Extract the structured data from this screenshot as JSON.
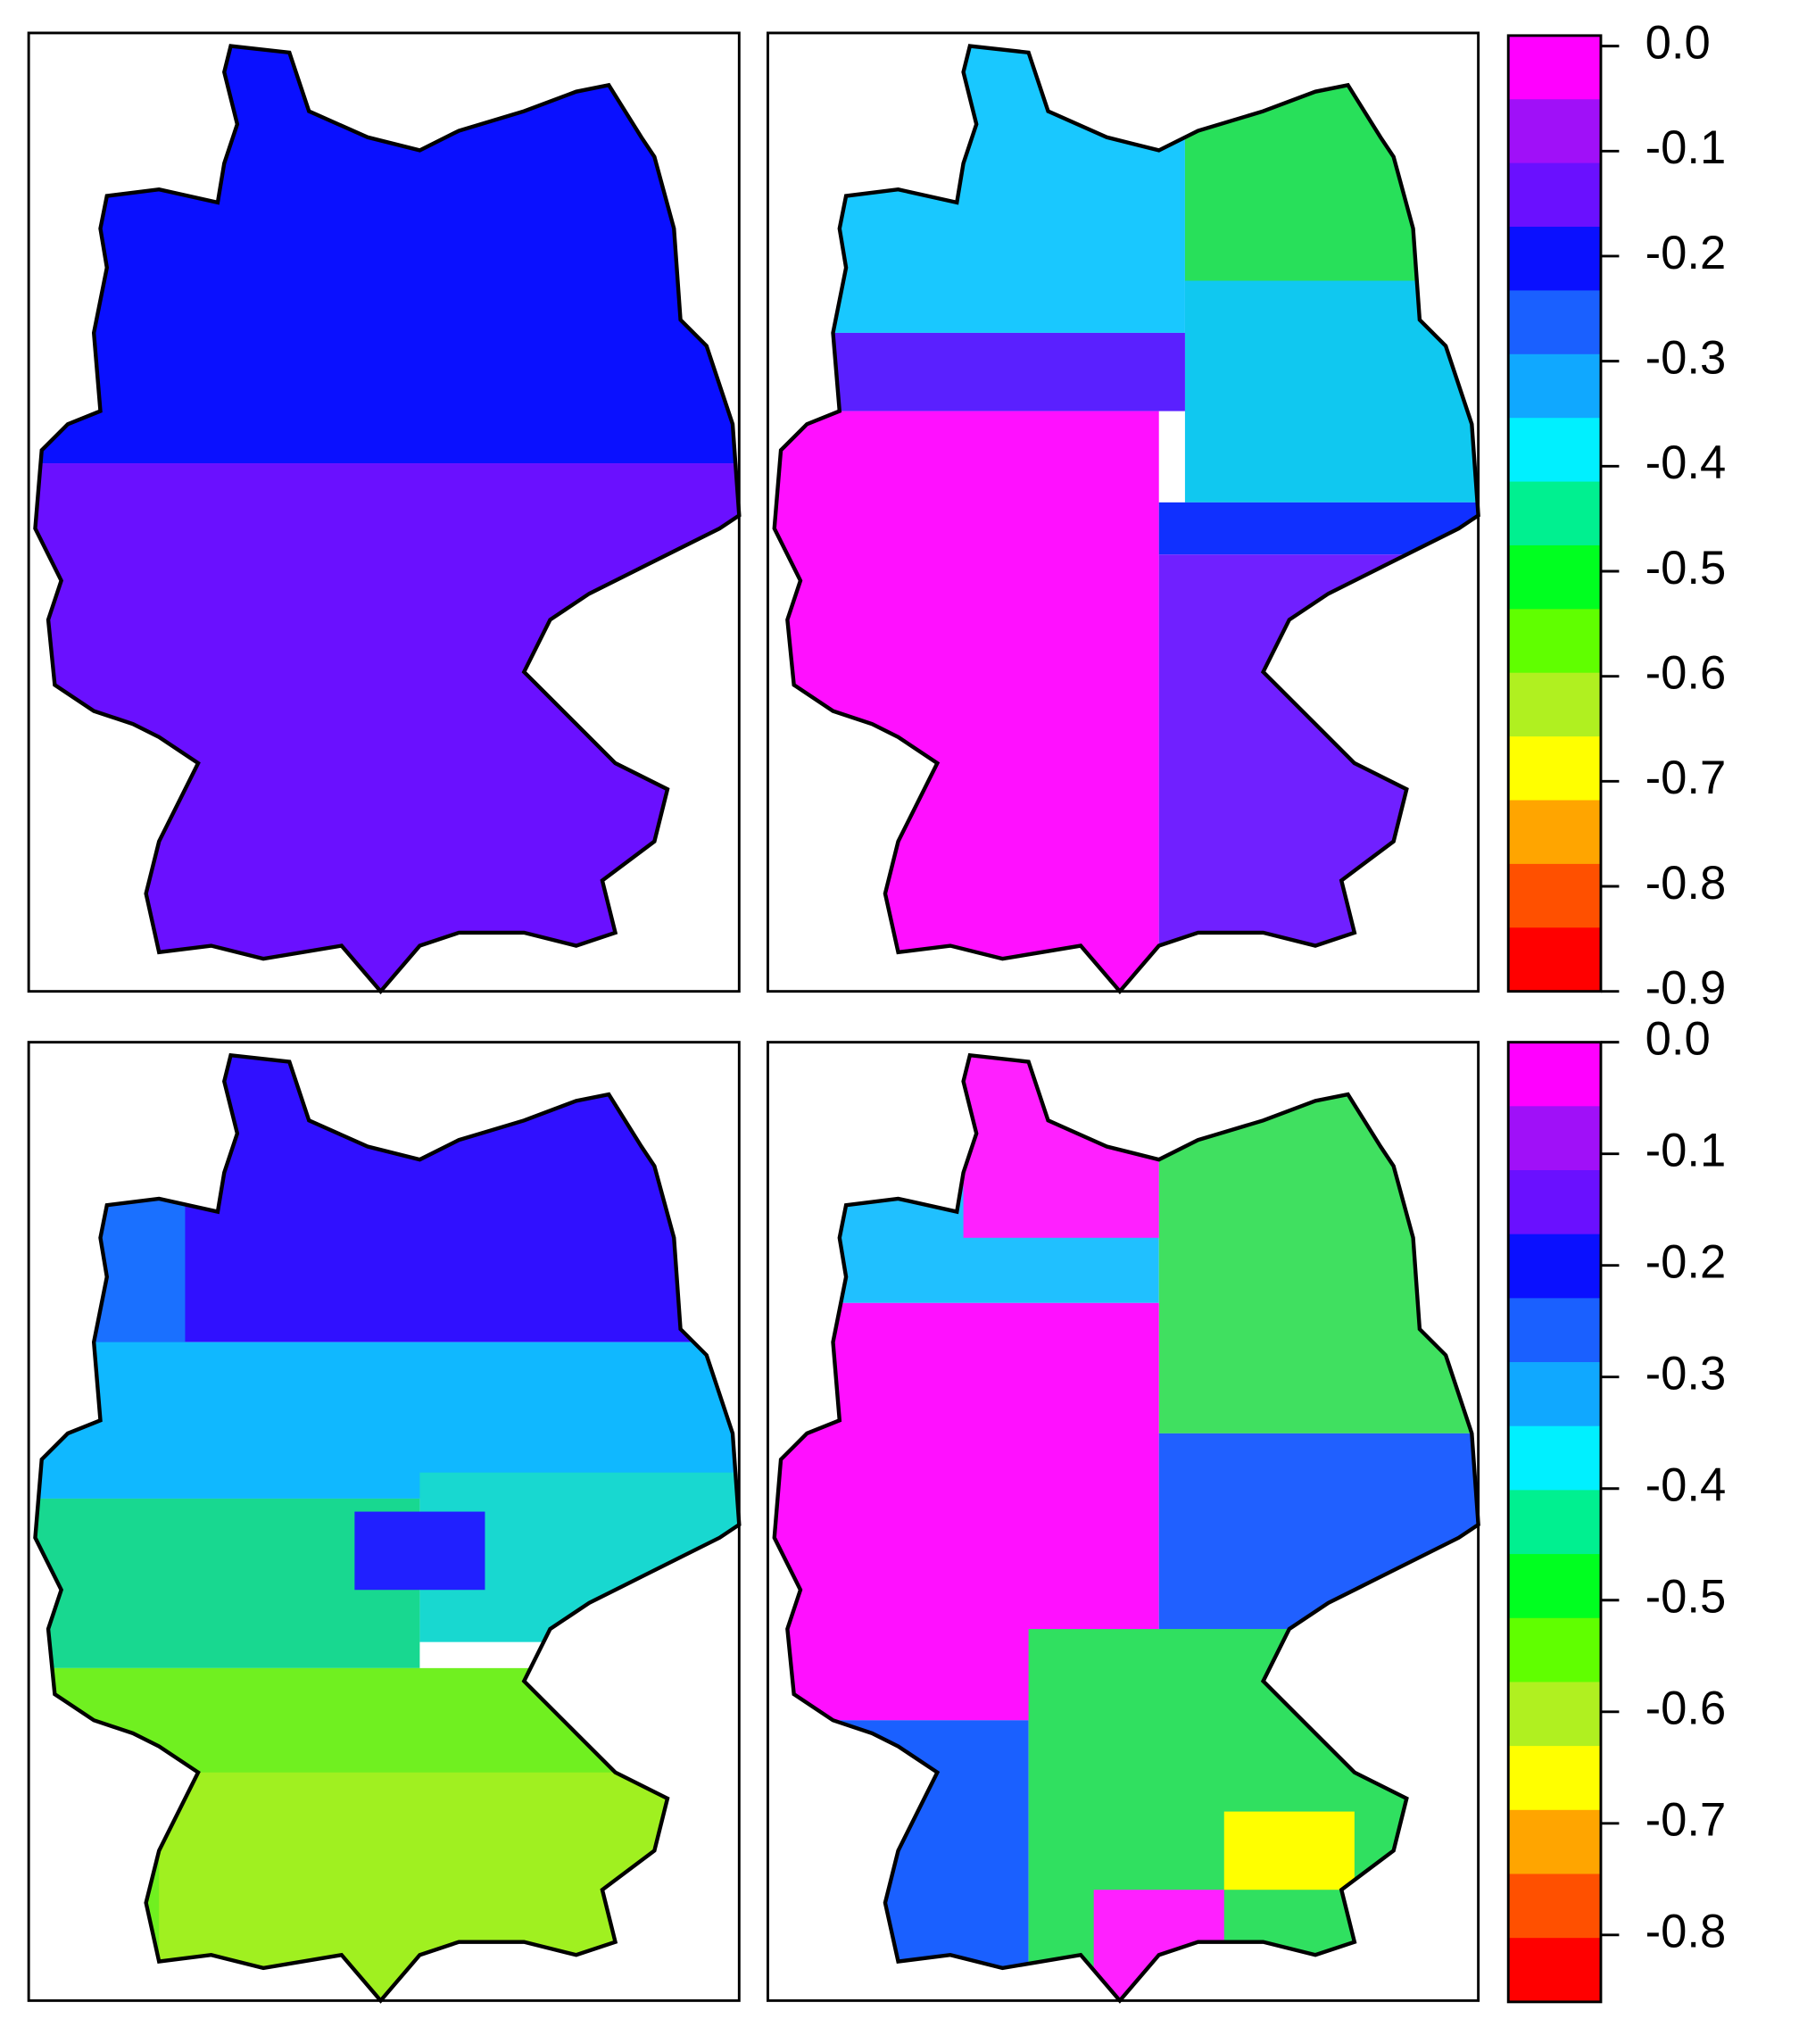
{
  "colorbars": [
    {
      "colors": [
        "#ff00ff",
        "#a010f8",
        "#6a10ff",
        "#0a10ff",
        "#1a60ff",
        "#10a8ff",
        "#00f0ff",
        "#00f090",
        "#00ff20",
        "#60ff00",
        "#b0f020",
        "#ffff00",
        "#ffa500",
        "#ff5000",
        "#ff0000"
      ],
      "lim": [
        0.01,
        -0.9
      ],
      "ticks": [
        {
          "value": 0,
          "label": "0.0"
        },
        -0.1,
        -0.2,
        -0.3,
        -0.4,
        -0.5,
        -0.6,
        -0.7,
        -0.8,
        -0.9
      ]
    },
    {
      "colors": [
        "#ff00ff",
        "#a010f8",
        "#6a10ff",
        "#0a10ff",
        "#1a60ff",
        "#10a8ff",
        "#00f0ff",
        "#00f090",
        "#00ff20",
        "#60ff00",
        "#b0f020",
        "#ffff00",
        "#ffa500",
        "#ff5000",
        "#ff0000"
      ],
      "lim": [
        0,
        -0.86
      ],
      "ticks": [
        {
          "value": 0,
          "label": "0.0"
        },
        -0.1,
        -0.2,
        -0.3,
        -0.4,
        -0.5,
        -0.6,
        -0.7,
        -0.8
      ]
    }
  ]
}
